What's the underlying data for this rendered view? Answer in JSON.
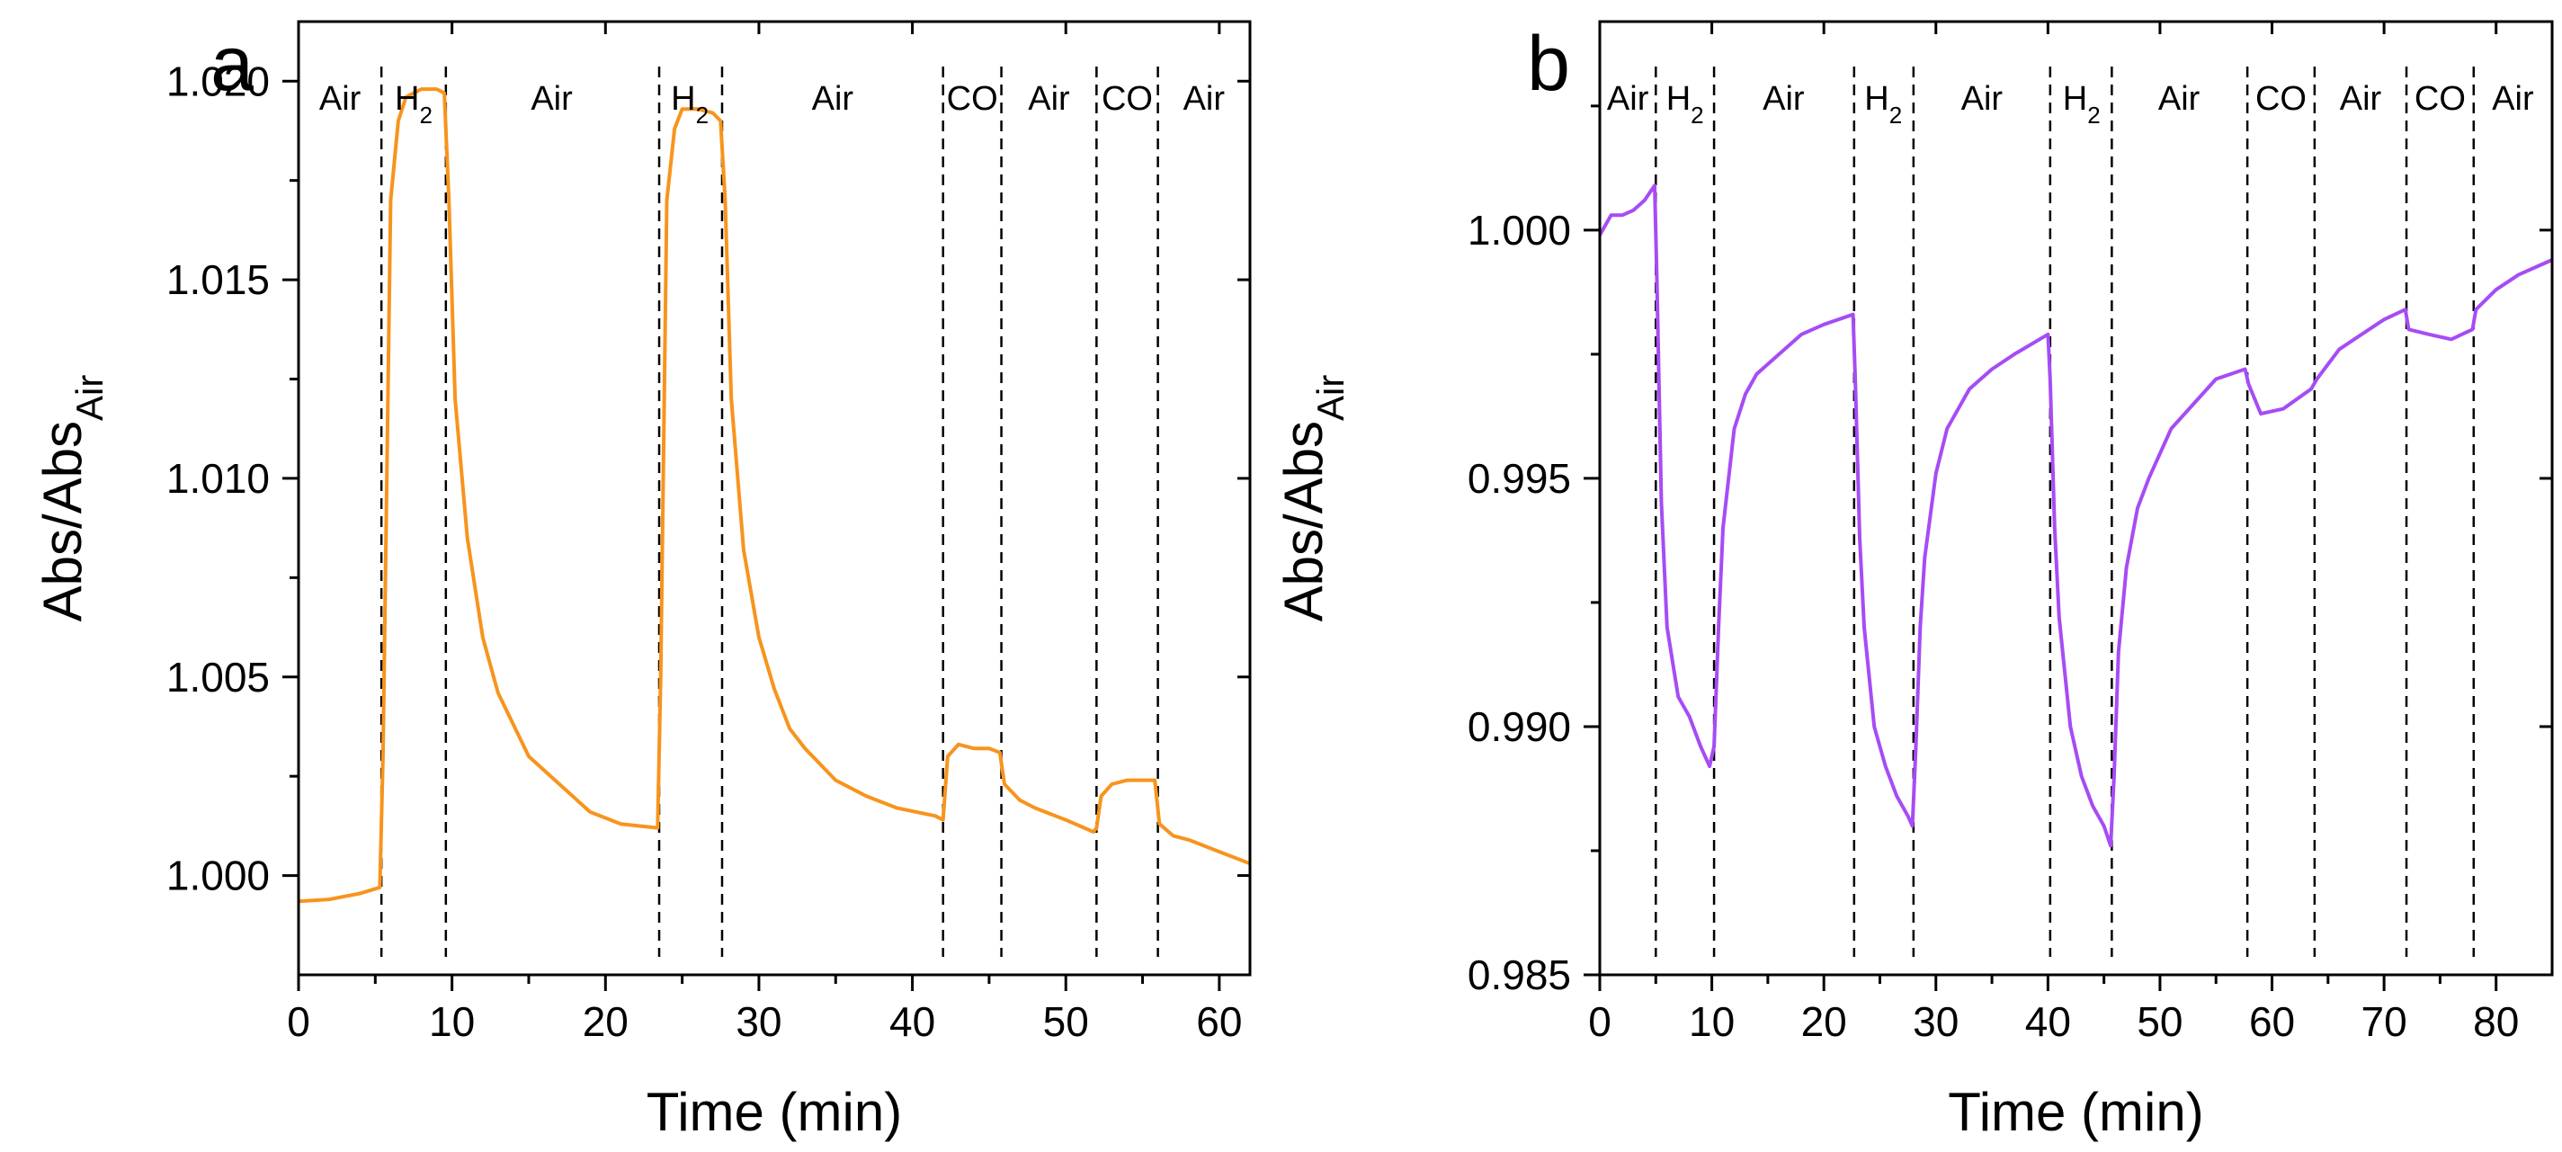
{
  "chart_data": [
    {
      "type": "line",
      "panel_label": "a",
      "xlabel": "Time (min)",
      "ylabel": "Abs/Abs",
      "ylabel_subscript": "Air",
      "xlim": [
        0,
        62
      ],
      "ylim": [
        0.9975,
        1.0215
      ],
      "x_ticks": [
        0,
        10,
        20,
        30,
        40,
        50,
        60
      ],
      "x_tick_labels": [
        "0",
        "10",
        "20",
        "30",
        "40",
        "50",
        "60"
      ],
      "y_ticks": [
        1.0,
        1.005,
        1.01,
        1.015,
        1.02
      ],
      "y_tick_labels": [
        "1.000",
        "1.005",
        "1.010",
        "1.015",
        "1.020"
      ],
      "line_color": "#f7941d",
      "dividers": [
        5.4,
        9.6,
        23.5,
        27.6,
        42.0,
        45.8,
        52.0,
        56.0
      ],
      "phases": [
        {
          "label": "Air",
          "sub": "",
          "x": 2.7
        },
        {
          "label": "H",
          "sub": "2",
          "x": 7.5
        },
        {
          "label": "Air",
          "sub": "",
          "x": 16.5
        },
        {
          "label": "H",
          "sub": "2",
          "x": 25.5
        },
        {
          "label": "Air",
          "sub": "",
          "x": 34.8
        },
        {
          "label": "CO",
          "sub": "",
          "x": 43.9
        },
        {
          "label": "Air",
          "sub": "",
          "x": 48.9
        },
        {
          "label": "CO",
          "sub": "",
          "x": 54.0
        },
        {
          "label": "Air",
          "sub": "",
          "x": 59.0
        }
      ],
      "series": [
        {
          "name": "Abs/Abs_Air",
          "x": [
            0,
            2,
            4,
            5.3,
            5.5,
            6.0,
            6.5,
            7.0,
            8.0,
            9.0,
            9.5,
            9.8,
            10.2,
            11,
            12,
            13,
            14,
            15,
            17,
            19,
            21,
            23.4,
            23.6,
            24.0,
            24.5,
            25.0,
            26.0,
            27.0,
            27.5,
            27.8,
            28.2,
            29,
            30,
            31,
            32,
            33,
            35,
            37,
            39,
            41.5,
            42.0,
            42.3,
            43,
            44,
            45,
            45.7,
            46.0,
            47,
            48,
            50,
            51.8,
            52.0,
            52.3,
            53,
            54,
            55,
            55.8,
            56.1,
            57,
            58,
            60,
            62
          ],
          "y": [
            0.99935,
            0.9994,
            0.99955,
            0.9997,
            1.003,
            1.017,
            1.019,
            1.0196,
            1.0198,
            1.0198,
            1.0197,
            1.017,
            1.012,
            1.0085,
            1.006,
            1.0046,
            1.0038,
            1.003,
            1.0023,
            1.0016,
            1.0013,
            1.0012,
            1.005,
            1.017,
            1.0188,
            1.0193,
            1.0193,
            1.0192,
            1.019,
            1.017,
            1.012,
            1.0082,
            1.006,
            1.0047,
            1.0037,
            1.0032,
            1.0024,
            1.002,
            1.0017,
            1.0015,
            1.0014,
            1.003,
            1.0033,
            1.0032,
            1.0032,
            1.0031,
            1.0023,
            1.0019,
            1.0017,
            1.0014,
            1.0011,
            1.0012,
            1.002,
            1.0023,
            1.0024,
            1.0024,
            1.0024,
            1.0013,
            1.001,
            1.0009,
            1.0006,
            1.0003
          ]
        }
      ]
    },
    {
      "type": "line",
      "panel_label": "b",
      "xlabel": "Time (min)",
      "ylabel": "Abs/Abs",
      "ylabel_subscript": "Air",
      "xlim": [
        0,
        85
      ],
      "ylim": [
        0.985,
        1.0042
      ],
      "x_ticks": [
        0,
        10,
        20,
        30,
        40,
        50,
        60,
        70,
        80
      ],
      "x_tick_labels": [
        "0",
        "10",
        "20",
        "30",
        "40",
        "50",
        "60",
        "70",
        "80"
      ],
      "y_ticks": [
        0.985,
        0.99,
        0.995,
        1.0
      ],
      "y_tick_labels": [
        "0.985",
        "0.990",
        "0.995",
        "1.000"
      ],
      "line_color": "#a64cf4",
      "dividers": [
        5.0,
        10.2,
        22.7,
        28.0,
        40.2,
        45.7,
        57.8,
        63.8,
        72.0,
        78.0
      ],
      "phases": [
        {
          "label": "Air",
          "sub": "",
          "x": 2.5
        },
        {
          "label": "H",
          "sub": "2",
          "x": 7.6
        },
        {
          "label": "Air",
          "sub": "",
          "x": 16.4
        },
        {
          "label": "H",
          "sub": "2",
          "x": 25.3
        },
        {
          "label": "Air",
          "sub": "",
          "x": 34.1
        },
        {
          "label": "H",
          "sub": "2",
          "x": 43.0
        },
        {
          "label": "Air",
          "sub": "",
          "x": 51.7
        },
        {
          "label": "CO",
          "sub": "",
          "x": 60.8
        },
        {
          "label": "Air",
          "sub": "",
          "x": 67.9
        },
        {
          "label": "CO",
          "sub": "",
          "x": 75.0
        },
        {
          "label": "Air",
          "sub": "",
          "x": 81.5
        }
      ],
      "series": [
        {
          "name": "Abs/Abs_Air",
          "x": [
            0,
            1,
            2,
            3,
            4,
            4.9,
            5.1,
            5.5,
            6.0,
            7,
            8,
            9,
            9.8,
            10.2,
            10.6,
            11,
            12,
            13,
            14,
            16,
            18,
            20,
            22.6,
            22.8,
            23.2,
            23.6,
            24.5,
            25.5,
            26.5,
            27.5,
            27.9,
            28.2,
            28.6,
            29,
            30,
            31,
            33,
            35,
            37,
            40.0,
            40.2,
            40.6,
            41,
            42,
            43,
            44,
            45,
            45.6,
            45.9,
            46.3,
            47,
            48,
            49,
            51,
            53,
            55,
            57.6,
            57.9,
            59,
            61,
            63.5,
            64,
            66,
            68,
            70,
            71.9,
            72.2,
            74,
            76,
            77.9,
            78.2,
            80,
            82,
            84,
            85
          ],
          "y": [
            0.9999,
            1.0003,
            1.0003,
            1.0004,
            1.0006,
            1.0009,
            0.999,
            0.9945,
            0.992,
            0.9906,
            0.9902,
            0.9896,
            0.9892,
            0.9896,
            0.992,
            0.994,
            0.996,
            0.9967,
            0.9971,
            0.9975,
            0.9979,
            0.9981,
            0.9983,
            0.997,
            0.9938,
            0.992,
            0.99,
            0.9892,
            0.9886,
            0.9882,
            0.988,
            0.9895,
            0.992,
            0.9934,
            0.9951,
            0.996,
            0.9968,
            0.9972,
            0.9975,
            0.9979,
            0.997,
            0.994,
            0.9922,
            0.99,
            0.989,
            0.9884,
            0.988,
            0.9876,
            0.989,
            0.9915,
            0.9932,
            0.9944,
            0.995,
            0.996,
            0.9965,
            0.997,
            0.9972,
            0.9969,
            0.9963,
            0.9964,
            0.9968,
            0.997,
            0.9976,
            0.9979,
            0.9982,
            0.9984,
            0.998,
            0.9979,
            0.9978,
            0.998,
            0.9984,
            0.9988,
            0.9991,
            0.9993,
            0.9994
          ]
        }
      ]
    }
  ]
}
